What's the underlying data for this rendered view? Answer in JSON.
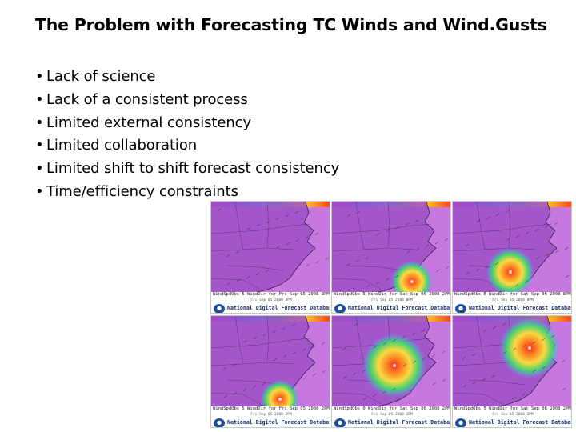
{
  "slide": {
    "title": "The Problem with Forecasting TC Winds and Wind.Gusts",
    "bullets": [
      "Lack of science",
      "Lack of a consistent process",
      "Limited external consistency",
      "Limited collaboration",
      "Limited shift to shift forecast consistency",
      "Time/efficiency constraints"
    ]
  },
  "maps": {
    "footer_title": "National Digital Forecast Database",
    "panels": [
      {
        "caption": "WindSpdObs 5 WindDir for Fri Sep 05 2008 8PM EDT",
        "subcaption": "Fri Sep 05 2008 8PM",
        "storm": "none"
      },
      {
        "caption": "WindSpdObs 5 WindDir for Sat Sep 06 2008 2PM EDT",
        "subcaption": "Fri Sep 05 2008 8PM",
        "storm": "coast"
      },
      {
        "caption": "WindSpdObs 5 WindDir for Sat Sep 06 2008 8PM EDT",
        "subcaption": "Fri Sep 05 2008 8PM",
        "storm": "inland"
      },
      {
        "caption": "WindSpdObs 5 WindDir for Fri Sep 05 2008 2PM EDT",
        "subcaption": "Fri Sep 05 2008 2PM",
        "storm": "edge"
      },
      {
        "caption": "WindSpdObs 0 WindDir for Sat Sep 06 2008 2PM EDT",
        "subcaption": "Fri Sep 05 2008 2PM",
        "storm": "center"
      },
      {
        "caption": "WindSpdObs 5 WindDir for Sat Sep 06 2008 2PM EDT",
        "subcaption": "Fri Sep 05 2008 2PM",
        "storm": "north"
      }
    ],
    "colors": {
      "background": "#c678e0",
      "land_tint": "#9d4fc4",
      "scale_top": [
        "#e030c0",
        "#7a5cff",
        "#2aa0ff",
        "#33d9ff",
        "#3ee07a",
        "#f2e83a",
        "#ff9a1f",
        "#ff3b1f"
      ],
      "storm": [
        "#ff2a14",
        "#ff8a1a",
        "#ffe03a",
        "#42d96b",
        "#35b8ff"
      ]
    }
  }
}
